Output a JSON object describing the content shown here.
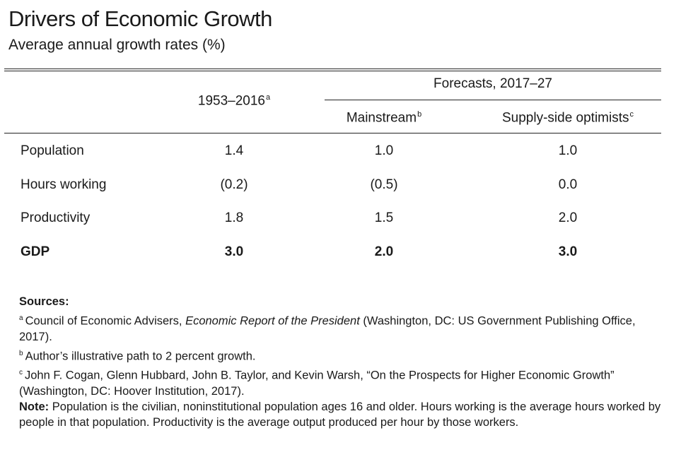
{
  "title": "Drivers of Economic Growth",
  "subtitle": "Average annual growth rates (%)",
  "table": {
    "col_historical": "1953–2016",
    "col_historical_note": "a",
    "forecast_group": "Forecasts, 2017–27",
    "col_mainstream": "Mainstream",
    "col_mainstream_note": "b",
    "col_optimists": "Supply-side optimists",
    "col_optimists_note": "c",
    "rows": [
      {
        "label": "Population",
        "historical": "1.4",
        "mainstream": "1.0",
        "optimists": "1.0"
      },
      {
        "label": "Hours working",
        "historical": "(0.2)",
        "mainstream": "(0.5)",
        "optimists": "0.0"
      },
      {
        "label": "Productivity",
        "historical": "1.8",
        "mainstream": "1.5",
        "optimists": "2.0"
      },
      {
        "label": "GDP",
        "historical": "3.0",
        "mainstream": "2.0",
        "optimists": "3.0"
      }
    ]
  },
  "notes": {
    "sources_heading": "Sources:",
    "a_marker": "a",
    "a_text_pre": "Council of Economic Advisers, ",
    "a_text_italic": "Economic Report of the President",
    "a_text_post": "  (Washington, DC: US Government Publishing Office, 2017).",
    "b_marker": "b",
    "b_text": "Author’s illustrative path to 2 percent growth.",
    "c_marker": "c",
    "c_text": "John F. Cogan, Glenn Hubbard, John B. Taylor, and Kevin Warsh, “On the Prospects for Higher Economic Growth” (Washington, DC: Hoover Institution, 2017).",
    "note_label": "Note:",
    "note_text": " Population is the civilian, noninstitutional population ages 16 and older. Hours working is the average hours worked by people in that population. Productivity is the average output produced per hour by those workers."
  }
}
